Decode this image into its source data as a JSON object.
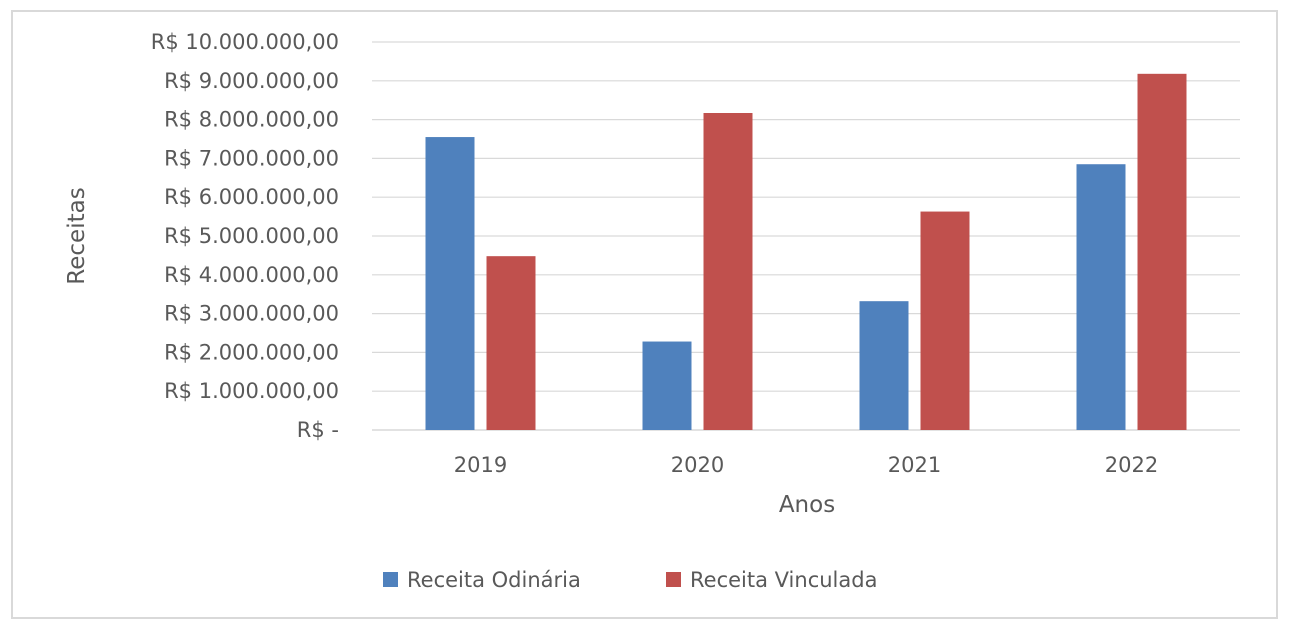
{
  "chart_data": {
    "type": "bar",
    "categories": [
      "2019",
      "2020",
      "2021",
      "2022"
    ],
    "series": [
      {
        "name": "Receita Odinária",
        "values": [
          7550000,
          2280000,
          3320000,
          6850000
        ],
        "color": "#4f81bd"
      },
      {
        "name": "Receita Vinculada",
        "values": [
          4480000,
          8170000,
          5630000,
          9180000
        ],
        "color": "#c0504d"
      }
    ],
    "xlabel": "Anos",
    "ylabel": "Receitas",
    "ylim": [
      0,
      10000000
    ],
    "y_tick_labels": [
      "R$ -",
      "R$ 1.000.000,00",
      "R$ 2.000.000,00",
      "R$ 3.000.000,00",
      "R$ 4.000.000,00",
      "R$ 5.000.000,00",
      "R$ 6.000.000,00",
      "R$ 7.000.000,00",
      "R$ 8.000.000,00",
      "R$ 9.000.000,00",
      "R$ 10.000.000,00"
    ],
    "grid": true,
    "legend": "bottom"
  }
}
